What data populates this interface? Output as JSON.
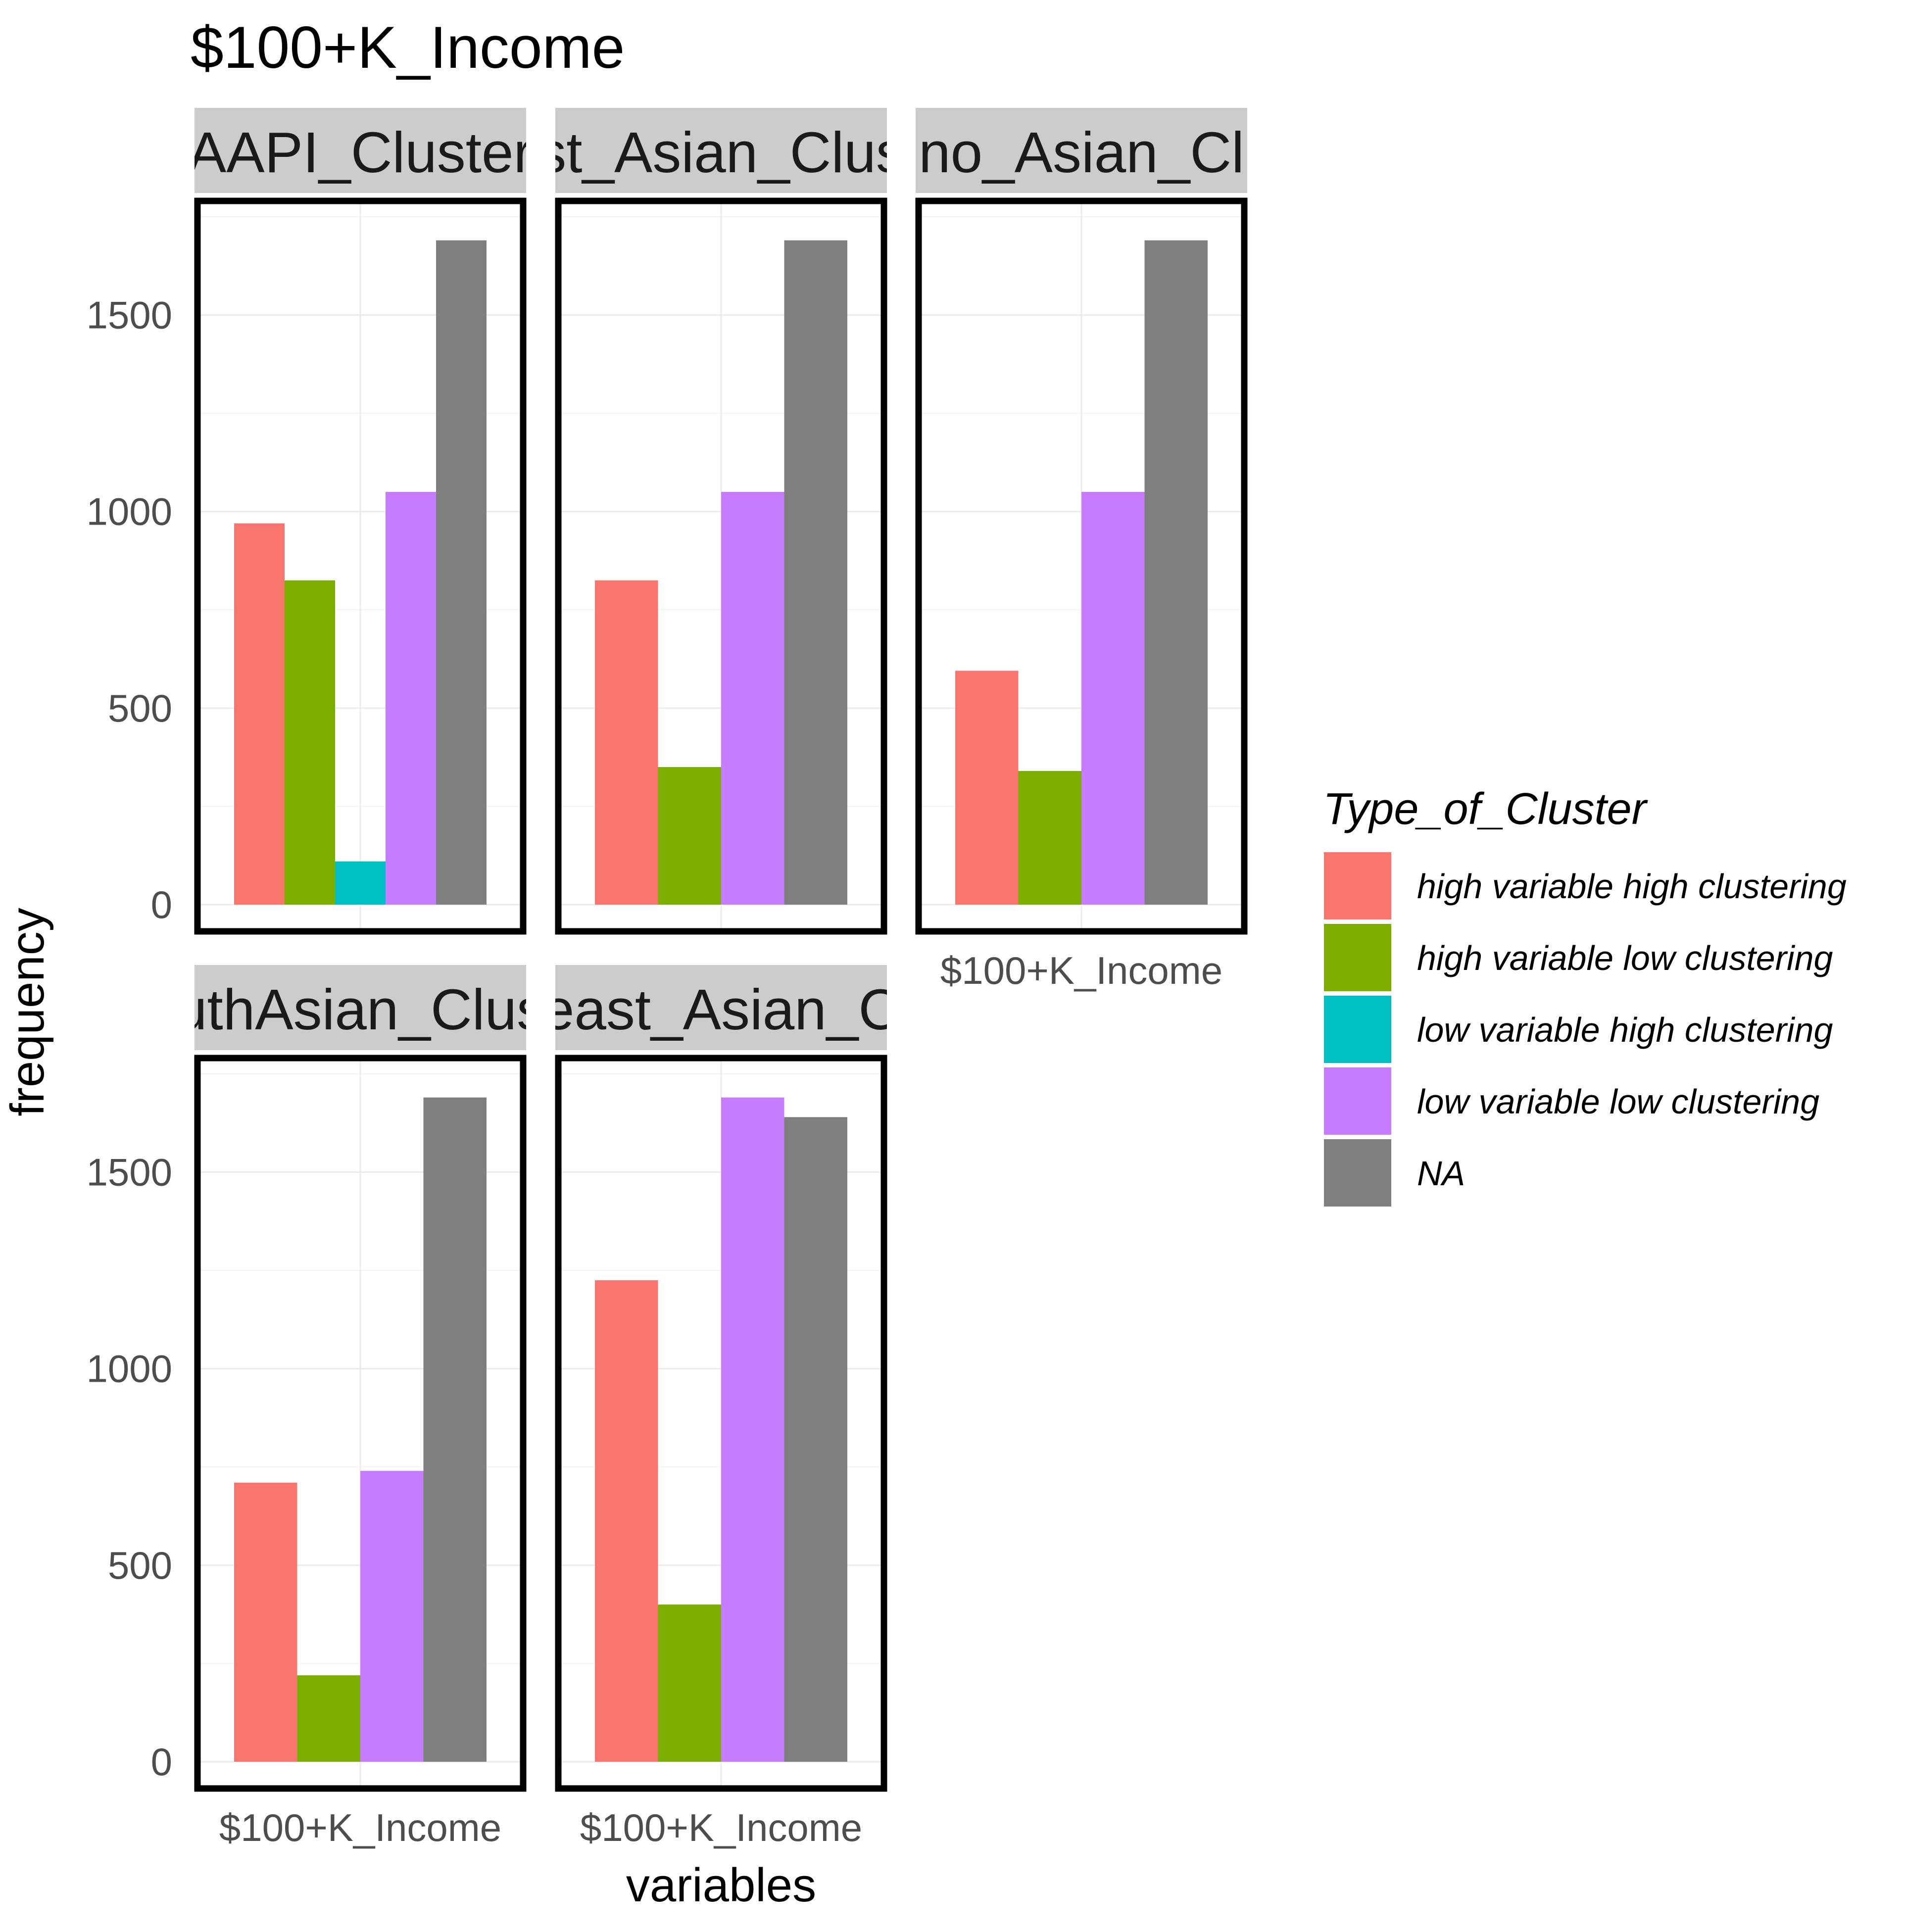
{
  "chart_data": {
    "type": "bar",
    "title": "$100+K_Income",
    "xlabel": "variables",
    "ylabel": "frequency",
    "ylim": [
      0,
      1750
    ],
    "y_ticks": [
      0,
      500,
      1000,
      1500
    ],
    "grid": true,
    "legend": {
      "title": "Type_of_Cluster",
      "placement": "right",
      "entries": [
        {
          "label": "high variable high clustering",
          "color": "#F8766D"
        },
        {
          "label": "high variable low clustering",
          "color": "#7CAE00"
        },
        {
          "label": "low variable high clustering",
          "color": "#00BFC4"
        },
        {
          "label": "low variable low clustering",
          "color": "#C77CFF"
        },
        {
          "label": "NA",
          "color": "#7F7F7F"
        }
      ]
    },
    "facets": [
      {
        "strip_label": "AAPI_Cluster",
        "category": "$100+K_Income",
        "show_x_tick": false,
        "bars": [
          {
            "series": "high variable high clustering",
            "value": 970
          },
          {
            "series": "high variable low clustering",
            "value": 825
          },
          {
            "series": "low variable high clustering",
            "value": 110
          },
          {
            "series": "low variable low clustering",
            "value": 1050
          },
          {
            "series": "NA",
            "value": 1690
          }
        ]
      },
      {
        "strip_label": "st_Asian_Clus",
        "category": "$100+K_Income",
        "show_x_tick": false,
        "bars": [
          {
            "series": "high variable high clustering",
            "value": 825
          },
          {
            "series": "high variable low clustering",
            "value": 350
          },
          {
            "series": "low variable low clustering",
            "value": 1050
          },
          {
            "series": "NA",
            "value": 1690
          }
        ]
      },
      {
        "strip_label": "no_Asian_Cl",
        "category": "$100+K_Income",
        "show_x_tick": true,
        "bars": [
          {
            "series": "high variable high clustering",
            "value": 595
          },
          {
            "series": "high variable low clustering",
            "value": 340
          },
          {
            "series": "low variable low clustering",
            "value": 1050
          },
          {
            "series": "NA",
            "value": 1690
          }
        ]
      },
      {
        "strip_label": "uthAsian_Clus",
        "category": "$100+K_Income",
        "show_x_tick": true,
        "bars": [
          {
            "series": "high variable high clustering",
            "value": 710
          },
          {
            "series": "high variable low clustering",
            "value": 220
          },
          {
            "series": "low variable low clustering",
            "value": 740
          },
          {
            "series": "NA",
            "value": 1690
          }
        ]
      },
      {
        "strip_label": "east_Asian_C",
        "category": "$100+K_Income",
        "show_x_tick": true,
        "bars": [
          {
            "series": "high variable high clustering",
            "value": 1225
          },
          {
            "series": "high variable low clustering",
            "value": 400
          },
          {
            "series": "low variable low clustering",
            "value": 1690
          },
          {
            "series": "NA",
            "value": 1640
          }
        ]
      }
    ]
  }
}
